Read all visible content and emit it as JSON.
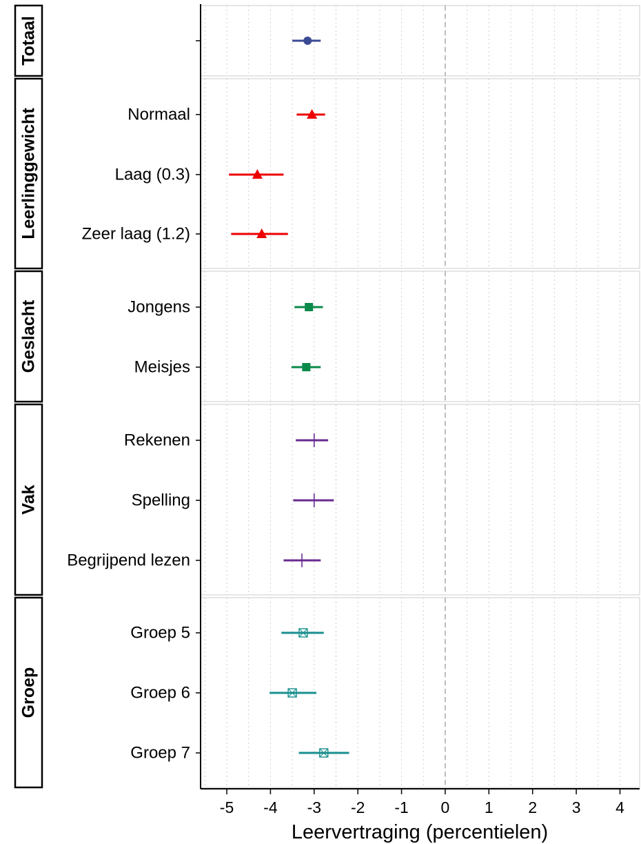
{
  "chart_data": {
    "type": "forest",
    "xlabel": "Leervertraging (percentielen)",
    "xlim": [
      -5.6,
      4.45
    ],
    "x_ticks": [
      -5,
      -4,
      -3,
      -2,
      -1,
      0,
      1,
      2,
      3,
      4
    ],
    "reference_line": 0,
    "grid": "vertical-dotted",
    "panels": [
      {
        "strip": "Totaal",
        "color": "#3b4a94",
        "marker": "circle",
        "rows": [
          {
            "label": "",
            "estimate": -3.15,
            "lower": -3.5,
            "upper": -2.85
          }
        ]
      },
      {
        "strip": "Leerlinggewicht",
        "color": "#ee0000",
        "marker": "triangle",
        "rows": [
          {
            "label": "Normaal",
            "estimate": -3.05,
            "lower": -3.4,
            "upper": -2.75
          },
          {
            "label": "Laag (0.3)",
            "estimate": -4.3,
            "lower": -4.95,
            "upper": -3.7
          },
          {
            "label": "Zeer laag (1.2)",
            "estimate": -4.2,
            "lower": -4.9,
            "upper": -3.6
          }
        ]
      },
      {
        "strip": "Geslacht",
        "color": "#0a8a4a",
        "marker": "square",
        "rows": [
          {
            "label": "Jongens",
            "estimate": -3.12,
            "lower": -3.45,
            "upper": -2.8
          },
          {
            "label": "Meisjes",
            "estimate": -3.18,
            "lower": -3.52,
            "upper": -2.85
          }
        ]
      },
      {
        "strip": "Vak",
        "color": "#6a2a90",
        "marker": "plus",
        "rows": [
          {
            "label": "Rekenen",
            "estimate": -3.0,
            "lower": -3.42,
            "upper": -2.68
          },
          {
            "label": "Spelling",
            "estimate": -3.0,
            "lower": -3.48,
            "upper": -2.55
          },
          {
            "label": "Begrijpend lezen",
            "estimate": -3.28,
            "lower": -3.7,
            "upper": -2.85
          }
        ]
      },
      {
        "strip": "Groep",
        "color": "#1a8f8f",
        "marker": "boxed-x",
        "rows": [
          {
            "label": "Groep 5",
            "estimate": -3.25,
            "lower": -3.75,
            "upper": -2.78
          },
          {
            "label": "Groep 6",
            "estimate": -3.5,
            "lower": -4.02,
            "upper": -2.95
          },
          {
            "label": "Groep 7",
            "estimate": -2.78,
            "lower": -3.35,
            "upper": -2.2
          }
        ]
      }
    ]
  }
}
